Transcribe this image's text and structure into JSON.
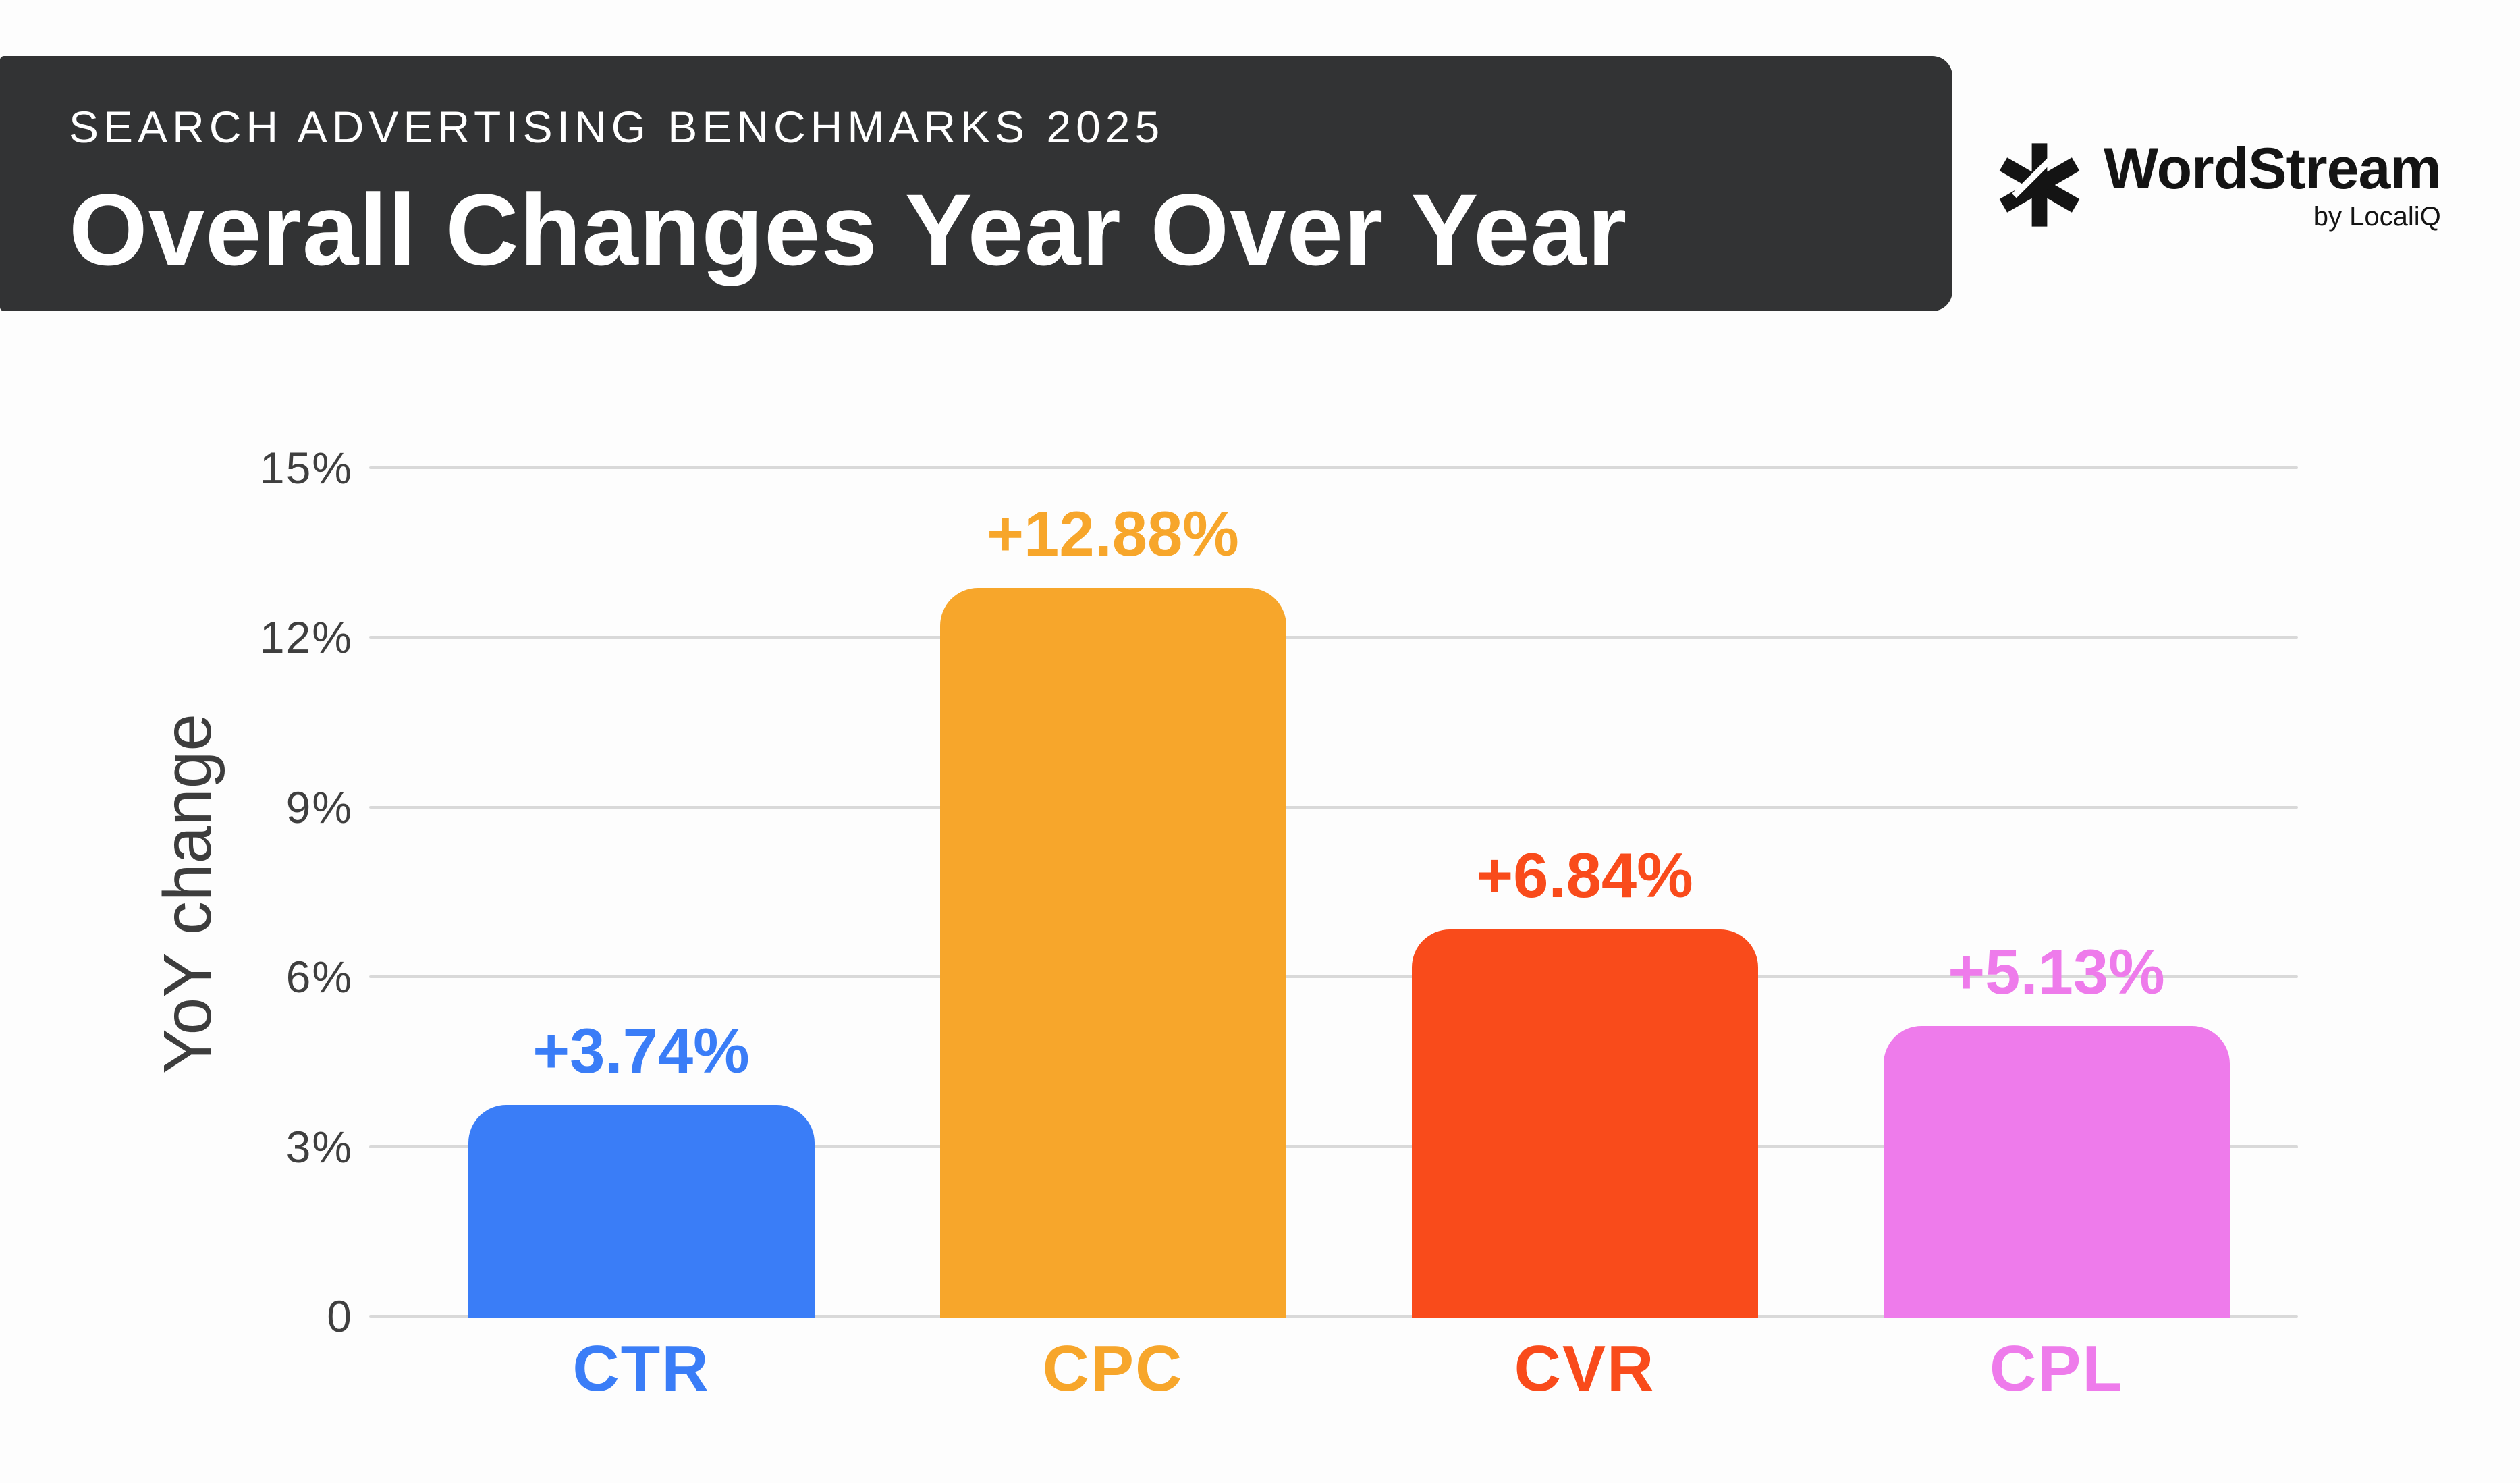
{
  "header": {
    "eyebrow": "SEARCH ADVERTISING BENCHMARKS 2025",
    "title": "Overall Changes Year Over Year",
    "bg_color": "#323334",
    "text_color": "#ffffff"
  },
  "logo": {
    "brand": "WordStream",
    "byline": "by LocaliQ",
    "icon": "scribble-asterisk-icon",
    "color": "#141414"
  },
  "chart_data": {
    "type": "bar",
    "title": "Overall Changes Year Over Year",
    "categories": [
      "CTR",
      "CPC",
      "CVR",
      "CPL"
    ],
    "values": [
      3.74,
      12.88,
      6.84,
      5.13
    ],
    "value_labels": [
      "+3.74%",
      "+12.88%",
      "+6.84%",
      "+5.13%"
    ],
    "bar_colors": [
      "#3A7DF7",
      "#F7A62B",
      "#F94B1B",
      "#EE7BEB"
    ],
    "xlabel": "",
    "ylabel": "YoY change",
    "ylim": [
      0,
      15
    ],
    "y_ticks": [
      "15%",
      "12%",
      "9%",
      "6%",
      "3%",
      "0"
    ],
    "y_tick_values": [
      15,
      12,
      9,
      6,
      3,
      0
    ],
    "grid": true,
    "gridline_color": "#d9d9d9",
    "tick_text_color": "#3f3f3f",
    "legend": "none"
  }
}
